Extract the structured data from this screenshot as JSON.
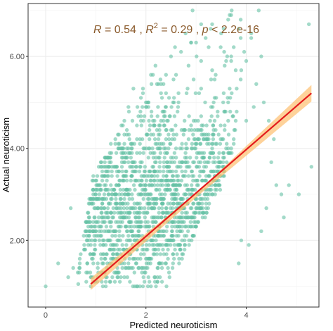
{
  "chart_data": {
    "type": "scatter",
    "title": "",
    "xlabel": "Predicted neuroticism",
    "ylabel": "Actual neuroticism",
    "xlim": [
      -0.35,
      5.45
    ],
    "ylim": [
      0.55,
      7.15
    ],
    "x_ticks": [
      0,
      2,
      4
    ],
    "x_tick_labels": [
      "0",
      "2",
      "4"
    ],
    "y_ticks": [
      2,
      4,
      6
    ],
    "y_tick_labels": [
      "2.00",
      "4.00",
      "6.00"
    ],
    "grid": true,
    "annotation": {
      "r_sym": "R",
      "r_val": " = 0.54 , ",
      "r2_sym": "R",
      "r2_sup": "2",
      "r2_val": " = 0.29 , ",
      "p_sym": "p",
      "p_val": " < 2.2e-16",
      "color": "#8a5a2b"
    },
    "point_color": "#66c2a5",
    "point_opacity": 0.6,
    "y_levels_min": 1.0,
    "y_levels_max": 7.0,
    "y_level_step": 0.1,
    "fit_line": {
      "x": [
        0.9,
        5.3
      ],
      "y": [
        1.05,
        5.2
      ],
      "color": "#e31a1c"
    },
    "ci_band": {
      "x": [
        0.9,
        3.05,
        5.3
      ],
      "lower": [
        0.92,
        2.98,
        5.02
      ],
      "upper": [
        1.18,
        3.08,
        5.38
      ],
      "color": "#fdbf6f"
    },
    "points_outliers": [
      [
        0.0,
        1.0
      ],
      [
        0.25,
        1.5
      ],
      [
        0.45,
        1.2
      ],
      [
        0.55,
        1.4
      ],
      [
        0.65,
        1.05
      ],
      [
        0.5,
        2.7
      ],
      [
        0.9,
        1.2
      ],
      [
        0.95,
        1.5
      ],
      [
        1.0,
        2.4
      ],
      [
        0.85,
        1.9
      ],
      [
        1.1,
        1.7
      ],
      [
        1.2,
        2.5
      ],
      [
        1.2,
        1.1
      ],
      [
        0.9,
        2.3
      ],
      [
        1.25,
        3.1
      ],
      [
        1.3,
        2.6
      ],
      [
        1.4,
        3.6
      ],
      [
        1.5,
        2.9
      ],
      [
        1.35,
        1.6
      ],
      [
        1.55,
        3.3
      ],
      [
        1.45,
        4.0
      ],
      [
        1.6,
        3.5
      ],
      [
        1.65,
        4.9
      ],
      [
        1.75,
        5.3
      ],
      [
        1.7,
        4.1
      ],
      [
        2.1,
        5.6
      ],
      [
        2.3,
        5.2
      ],
      [
        2.35,
        5.4
      ],
      [
        2.5,
        6.0
      ],
      [
        2.6,
        5.6
      ],
      [
        2.7,
        6.1
      ],
      [
        2.85,
        5.8
      ],
      [
        2.95,
        5.5
      ],
      [
        3.0,
        6.3
      ],
      [
        3.1,
        5.9
      ],
      [
        3.3,
        5.5
      ],
      [
        3.5,
        6.5
      ],
      [
        3.6,
        5.9
      ],
      [
        3.7,
        6.0
      ],
      [
        3.85,
        6.6
      ],
      [
        3.9,
        5.7
      ],
      [
        4.1,
        6.4
      ],
      [
        4.25,
        7.0
      ],
      [
        4.3,
        6.0
      ],
      [
        4.2,
        5.4
      ],
      [
        4.35,
        5.0
      ],
      [
        4.45,
        4.6
      ],
      [
        4.5,
        3.7
      ],
      [
        4.55,
        4.2
      ],
      [
        4.6,
        3.2
      ],
      [
        4.7,
        3.0
      ],
      [
        4.85,
        3.2
      ],
      [
        4.75,
        2.5
      ],
      [
        4.4,
        2.7
      ],
      [
        4.3,
        2.2
      ],
      [
        4.05,
        1.9
      ],
      [
        3.85,
        1.5
      ],
      [
        3.9,
        2.0
      ],
      [
        4.0,
        4.6
      ],
      [
        3.75,
        6.2
      ],
      [
        5.05,
        3.0
      ],
      [
        5.3,
        3.6
      ],
      [
        5.25,
        6.7
      ],
      [
        2.05,
        5.0
      ],
      [
        1.9,
        4.6
      ],
      [
        2.4,
        4.9
      ],
      [
        3.25,
        6.2
      ],
      [
        3.55,
        5.2
      ],
      [
        4.15,
        4.9
      ],
      [
        1.65,
        3.9
      ]
    ]
  }
}
